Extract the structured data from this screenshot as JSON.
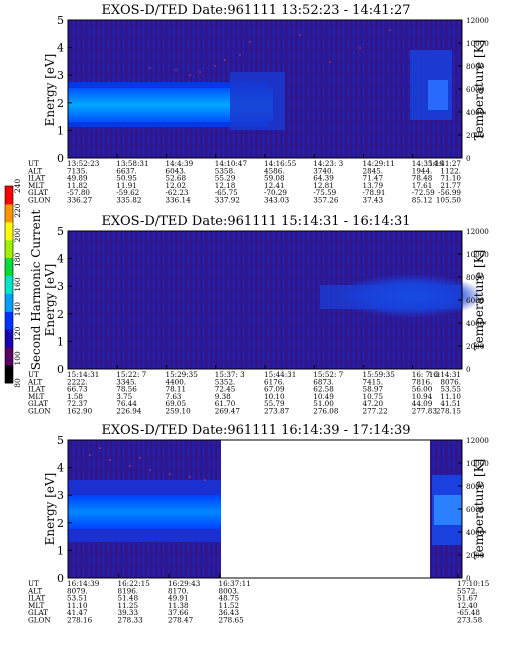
{
  "chart_data": {
    "type": "heatmap",
    "colorbar": {
      "label": "Second Harmonic Current",
      "tick_labels": [
        "80",
        "100",
        "120",
        "140",
        "160",
        "180",
        "200",
        "220",
        "240"
      ],
      "range": [
        80,
        240
      ],
      "colors": [
        "#000000",
        "#5a0063",
        "#1a00b4",
        "#0032ff",
        "#00a0ff",
        "#00e6c8",
        "#00dc3c",
        "#a0f000",
        "#ffff00",
        "#ff9600",
        "#ff0000"
      ]
    },
    "row_labels": [
      "UT",
      "ALT",
      "ILAT",
      "MLT",
      "GLAT",
      "GLON"
    ],
    "panels": [
      {
        "title": "EXOS-D/TED   Date:961111  13:52:23 - 14:41:27",
        "ylabel": "Energy [eV]",
        "y2label": "Temperature [K]",
        "ylim": [
          0,
          5
        ],
        "yticks": [
          "0",
          "1",
          "2",
          "3",
          "4",
          "5"
        ],
        "y2lim": [
          0,
          12000
        ],
        "y2ticks": [
          "0",
          "2000",
          "4000",
          "6000",
          "8000",
          "10000",
          "12000"
        ],
        "columns": [
          [
            "13:52:23",
            "7135.",
            "49.89",
            "11.82",
            "-57.80",
            "336.27"
          ],
          [
            "13:58:31",
            "6637.",
            "50.95",
            "11.91",
            "-59.62",
            "335.82"
          ],
          [
            "14:4:39",
            "6043.",
            "52.68",
            "12.02",
            "-62.23",
            "336.14"
          ],
          [
            "14:10:47",
            "5358.",
            "55.29",
            "12.18",
            "-65.75",
            "337.92"
          ],
          [
            "14:16:55",
            "4586.",
            "59.08",
            "12.41",
            "-70.29",
            "343.03"
          ],
          [
            "14:23: 3",
            "3740.",
            "64.39",
            "12.81",
            "-75.59",
            "357.26"
          ],
          [
            "14:29:11",
            "2845.",
            "71.47",
            "13.79",
            "-78.91",
            "37.43"
          ],
          [
            "14:35:19",
            "1944.",
            "78.48",
            "17.61",
            "-72.59",
            "85.12"
          ],
          [
            "14:41:27",
            "1122.",
            "71.10",
            "21.77",
            "-56.99",
            "105.50"
          ]
        ]
      },
      {
        "title": "EXOS-D/TED   Date:961111  15:14:31 - 16:14:31",
        "ylabel": "Energy [eV]",
        "y2label": "Temperature [K]",
        "ylim": [
          0,
          5
        ],
        "yticks": [
          "0",
          "1",
          "2",
          "3",
          "4",
          "5"
        ],
        "y2lim": [
          0,
          12000
        ],
        "y2ticks": [
          "0",
          "2000",
          "4000",
          "6000",
          "8000",
          "10000",
          "12000"
        ],
        "columns": [
          [
            "15:14:31",
            "2222.",
            "66.73",
            "1.58",
            "72.37",
            "162.90"
          ],
          [
            "15:22: 7",
            "3345.",
            "78.56",
            "3.75",
            "76.44",
            "226.94"
          ],
          [
            "15:29:35",
            "4400.",
            "78.11",
            "7.63",
            "69.05",
            "259.10"
          ],
          [
            "15:37: 3",
            "5352.",
            "72.45",
            "9.38",
            "61.70",
            "269.47"
          ],
          [
            "15:44:31",
            "6176.",
            "67.09",
            "10.10",
            "55.79",
            "273.87"
          ],
          [
            "15:52: 7",
            "6873.",
            "62.58",
            "10.49",
            "51.00",
            "276.08"
          ],
          [
            "15:59:35",
            "7415.",
            "58.97",
            "10.75",
            "47.20",
            "277.22"
          ],
          [
            "16: 7: 3",
            "7816.",
            "56.00",
            "10.94",
            "44.09",
            "277.83"
          ],
          [
            "16:14:31",
            "8076.",
            "53.55",
            "11.10",
            "41.51",
            "278.15"
          ]
        ]
      },
      {
        "title": "EXOS-D/TED   Date:961111  16:14:39 - 17:14:39",
        "ylabel": "Energy [eV]",
        "y2label": "Temperature [K]",
        "ylim": [
          0,
          5
        ],
        "yticks": [
          "0",
          "1",
          "2",
          "3",
          "4",
          "5"
        ],
        "y2lim": [
          0,
          12000
        ],
        "y2ticks": [
          "0",
          "2000",
          "4000",
          "6000",
          "8000",
          "10000",
          "12000"
        ],
        "columns": [
          [
            "16:14:39",
            "8079.",
            "53.51",
            "11.10",
            "41.47",
            "278.16"
          ],
          [
            "16:22:15",
            "8196.",
            "51.48",
            "11.25",
            "39.33",
            "278.33"
          ],
          [
            "16:29:43",
            "8170.",
            "49.91",
            "11.38",
            "37.66",
            "278.47"
          ],
          [
            "16:37:11",
            "8003.",
            "48.75",
            "11.52",
            "36.43",
            "278.65"
          ],
          [
            "17:10:15",
            "5572.",
            "51.67",
            "12.40",
            "-65.48",
            "273.58"
          ]
        ]
      }
    ]
  }
}
